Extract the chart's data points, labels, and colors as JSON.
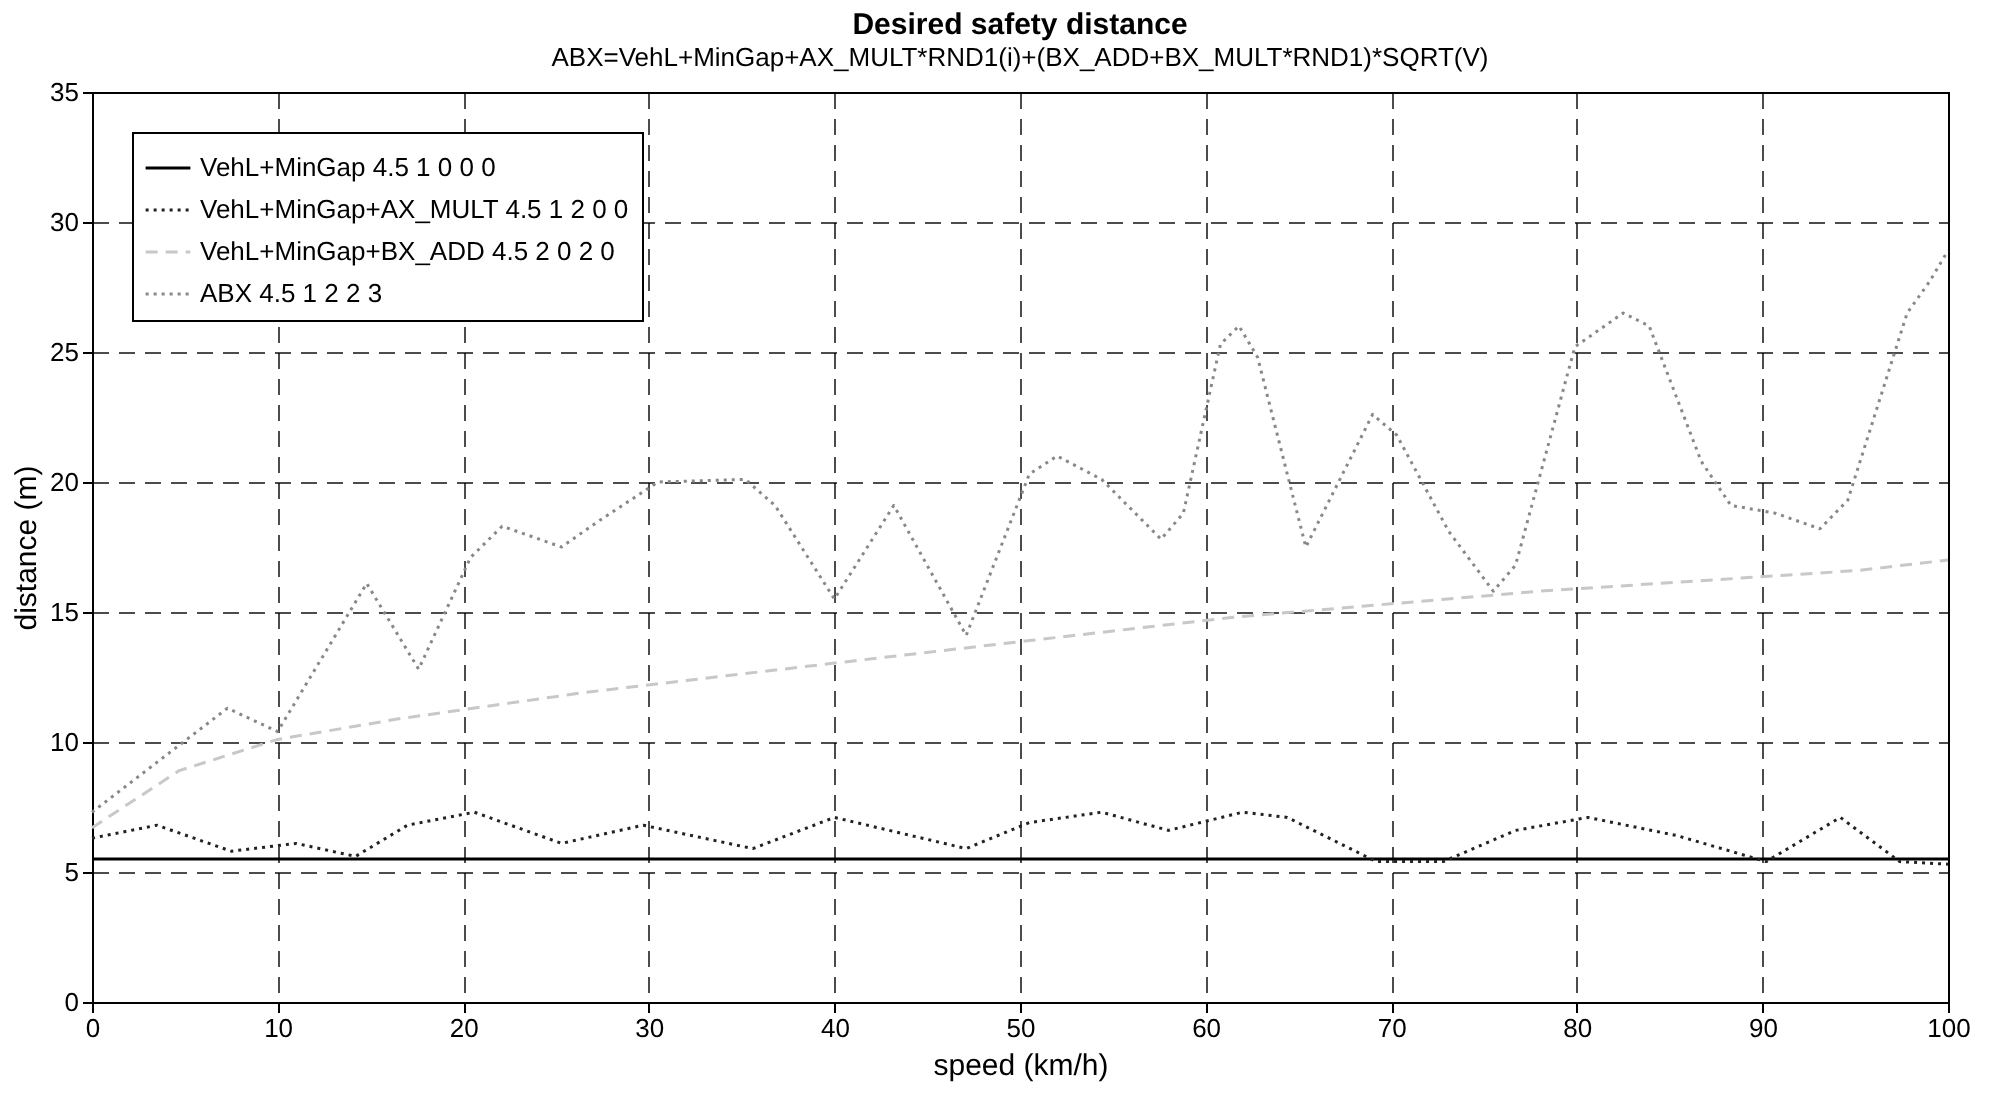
{
  "chart_data": {
    "type": "line",
    "title": "Desired safety distance",
    "subtitle": "ABX=VehL+MinGap+AX_MULT*RND1(i)+(BX_ADD+BX_MULT*RND1)*SQRT(V)",
    "xlabel": "speed (km/h)",
    "ylabel": "distance (m)",
    "xlim": [
      0,
      100
    ],
    "xticks": [
      0,
      10,
      20,
      30,
      40,
      50,
      60,
      70,
      80,
      90,
      100
    ],
    "ylim": [
      0,
      35
    ],
    "yticks": [
      0,
      5,
      10,
      15,
      20,
      25,
      30,
      35
    ],
    "grid": true,
    "legend": "top left",
    "marker": "none",
    "series": [
      {
        "name": "VehL+MinGap 4.5 1 0 0 0",
        "color": "#000000",
        "line_style": "solid",
        "x": [
          0,
          100
        ],
        "values": [
          5.5,
          5.5
        ]
      },
      {
        "name": "VehL+MinGap+AX_MULT 4.5 1 2 0 0",
        "color": "#222222",
        "line_style": "dotted",
        "x": [
          0,
          3.5,
          7.5,
          11,
          14.2,
          17,
          20.6,
          25.3,
          29.7,
          35.6,
          40,
          47.1,
          50.5,
          54.4,
          58,
          62,
          64.4,
          69.2,
          72.8,
          76.7,
          80.6,
          85.4,
          90.2,
          94.2,
          97.4,
          100
        ],
        "values": [
          6.3,
          6.8,
          5.8,
          6.1,
          5.6,
          6.8,
          7.3,
          6.1,
          6.8,
          5.9,
          7.1,
          5.9,
          6.9,
          7.3,
          6.6,
          7.3,
          7.1,
          5.4,
          5.4,
          6.6,
          7.1,
          6.4,
          5.4,
          7.1,
          5.4,
          5.3
        ]
      },
      {
        "name": "VehL+MinGap+BX_ADD 4.5 2 0 2 0",
        "color": "#c8c8c8",
        "line_style": "dashed",
        "x": [
          0,
          4.7,
          10,
          16.6,
          26.5,
          34.8,
          40.8,
          50.5,
          61.5,
          78,
          95.2,
          100
        ],
        "values": [
          6.7,
          8.9,
          10.1,
          10.9,
          11.9,
          12.6,
          13.1,
          13.9,
          14.8,
          15.8,
          16.6,
          17
        ]
      },
      {
        "name": "ABX 4.5 1 2 2 3",
        "color": "#888888",
        "line_style": "dotted",
        "x": [
          0,
          7.3,
          10,
          14.8,
          17.6,
          20.4,
          22.1,
          25.3,
          27.3,
          30.5,
          35.2,
          36.8,
          40,
          43.2,
          47.1,
          50.5,
          52,
          54.4,
          57.6,
          58.8,
          60.8,
          61.8,
          62.8,
          65.4,
          69,
          70.3,
          73.1,
          75.5,
          76.7,
          79.9,
          82.5,
          83.9,
          86.7,
          88.3,
          90.7,
          93.1,
          94.6,
          97.8,
          99,
          100
        ],
        "values": [
          7.3,
          11.3,
          10.4,
          16.1,
          12.8,
          17.1,
          18.3,
          17.5,
          18.5,
          20,
          20.1,
          19.1,
          15.5,
          19.1,
          14.1,
          20.3,
          21,
          20.1,
          17.8,
          18.8,
          25.3,
          26,
          24.8,
          17.5,
          22.6,
          21.8,
          18.1,
          15.8,
          16.8,
          25.2,
          26.5,
          26,
          20.8,
          19.1,
          18.8,
          18.2,
          19.3,
          26.5,
          27.7,
          28.9
        ]
      }
    ]
  }
}
